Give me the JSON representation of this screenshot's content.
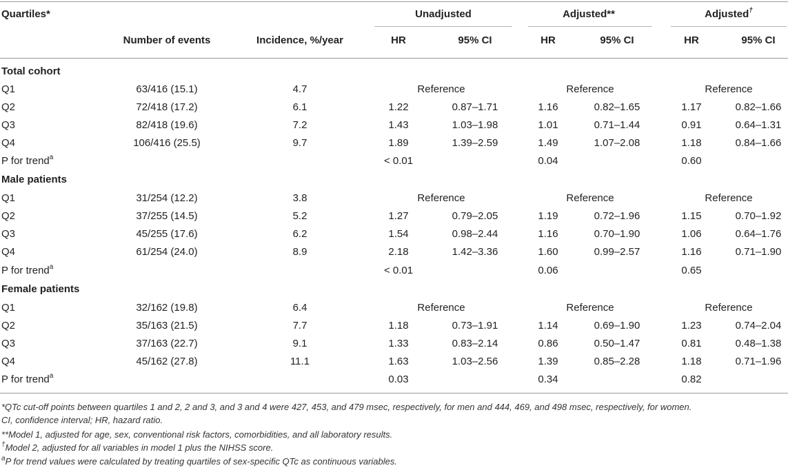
{
  "header": {
    "quartiles": "Quartiles*",
    "number_of_events": "Number of events",
    "incidence": "Incidence, %/year",
    "unadjusted": "Unadjusted",
    "adjusted1": "Adjusted**",
    "adjusted2": "Adjusted",
    "adjusted2_mark": "†",
    "hr": "HR",
    "ci": "95% CI"
  },
  "sections": [
    {
      "title": "Total cohort",
      "rows": [
        {
          "label": "Q1",
          "events": "63/416 (15.1)",
          "incidence": "4.7",
          "ref": "Reference"
        },
        {
          "label": "Q2",
          "events": "72/418 (17.2)",
          "incidence": "6.1",
          "u_hr": "1.22",
          "u_ci": "0.87–1.71",
          "a1_hr": "1.16",
          "a1_ci": "0.82–1.65",
          "a2_hr": "1.17",
          "a2_ci": "0.82–1.66"
        },
        {
          "label": "Q3",
          "events": "82/418 (19.6)",
          "incidence": "7.2",
          "u_hr": "1.43",
          "u_ci": "1.03–1.98",
          "a1_hr": "1.01",
          "a1_ci": "0.71–1.44",
          "a2_hr": "0.91",
          "a2_ci": "0.64–1.31"
        },
        {
          "label": "Q4",
          "events": "106/416 (25.5)",
          "incidence": "9.7",
          "u_hr": "1.89",
          "u_ci": "1.39–2.59",
          "a1_hr": "1.49",
          "a1_ci": "1.07–2.08",
          "a2_hr": "1.18",
          "a2_ci": "0.84–1.66"
        }
      ],
      "trend": {
        "label": "P for trend",
        "mark": "a",
        "u": "< 0.01",
        "a1": "0.04",
        "a2": "0.60"
      }
    },
    {
      "title": "Male patients",
      "rows": [
        {
          "label": "Q1",
          "events": "31/254 (12.2)",
          "incidence": "3.8",
          "ref": "Reference"
        },
        {
          "label": "Q2",
          "events": "37/255 (14.5)",
          "incidence": "5.2",
          "u_hr": "1.27",
          "u_ci": "0.79–2.05",
          "a1_hr": "1.19",
          "a1_ci": "0.72–1.96",
          "a2_hr": "1.15",
          "a2_ci": "0.70–1.92"
        },
        {
          "label": "Q3",
          "events": "45/255 (17.6)",
          "incidence": "6.2",
          "u_hr": "1.54",
          "u_ci": "0.98–2.44",
          "a1_hr": "1.16",
          "a1_ci": "0.70–1.90",
          "a2_hr": "1.06",
          "a2_ci": "0.64–1.76"
        },
        {
          "label": "Q4",
          "events": "61/254 (24.0)",
          "incidence": "8.9",
          "u_hr": "2.18",
          "u_ci": "1.42–3.36",
          "a1_hr": "1.60",
          "a1_ci": "0.99–2.57",
          "a2_hr": "1.16",
          "a2_ci": "0.71–1.90"
        }
      ],
      "trend": {
        "label": "P for trend",
        "mark": "a",
        "u": "< 0.01",
        "a1": "0.06",
        "a2": "0.65"
      }
    },
    {
      "title": "Female patients",
      "rows": [
        {
          "label": "Q1",
          "events": "32/162 (19.8)",
          "incidence": "6.4",
          "ref": "Reference"
        },
        {
          "label": "Q2",
          "events": "35/163 (21.5)",
          "incidence": "7.7",
          "u_hr": "1.18",
          "u_ci": "0.73–1.91",
          "a1_hr": "1.14",
          "a1_ci": "0.69–1.90",
          "a2_hr": "1.23",
          "a2_ci": "0.74–2.04"
        },
        {
          "label": "Q3",
          "events": "37/163 (22.7)",
          "incidence": "9.1",
          "u_hr": "1.33",
          "u_ci": "0.83–2.14",
          "a1_hr": "0.86",
          "a1_ci": "0.50–1.47",
          "a2_hr": "0.81",
          "a2_ci": "0.48–1.38"
        },
        {
          "label": "Q4",
          "events": "45/162 (27.8)",
          "incidence": "11.1",
          "u_hr": "1.63",
          "u_ci": "1.03–2.56",
          "a1_hr": "1.39",
          "a1_ci": "0.85–2.28",
          "a2_hr": "1.18",
          "a2_ci": "0.71–1.96"
        }
      ],
      "trend": {
        "label": "P for trend",
        "mark": "a",
        "u": "0.03",
        "a1": "0.34",
        "a2": "0.82"
      }
    }
  ],
  "footnotes": {
    "f1_line1": "*QTc cut-off points between quartiles 1 and 2, 2 and 3, and 3 and 4 were 427, 453, and 479 msec, respectively, for men and 444, 469, and 498 msec, respectively, for women.",
    "f1_line2": "CI, confidence interval; HR, hazard ratio.",
    "f2": "**Model 1, adjusted for age, sex, conventional risk factors, comorbidities, and all laboratory results.",
    "f3_mark": "†",
    "f3": "Model 2, adjusted for all variables in model 1 plus the NIHSS score.",
    "f4_mark": "a",
    "f4": "P for trend values were calculated by treating quartiles of sex-specific QTc as continuous variables."
  }
}
